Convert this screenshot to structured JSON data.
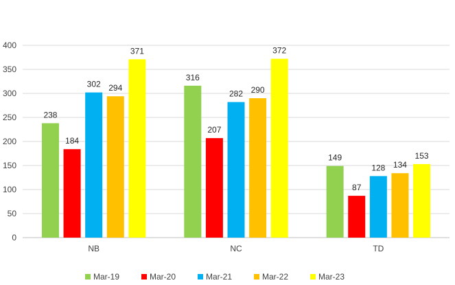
{
  "chart_data": {
    "type": "bar",
    "categories": [
      "NB",
      "NC",
      "TD"
    ],
    "series": [
      {
        "name": "Mar-19",
        "color": "#92D050",
        "values": [
          238,
          316,
          149
        ]
      },
      {
        "name": "Mar-20",
        "color": "#FF0000",
        "values": [
          184,
          207,
          87
        ]
      },
      {
        "name": "Mar-21",
        "color": "#00B0F0",
        "values": [
          302,
          282,
          128
        ]
      },
      {
        "name": "Mar-22",
        "color": "#FFC000",
        "values": [
          294,
          290,
          134
        ]
      },
      {
        "name": "Mar-23",
        "color": "#FFFF00",
        "values": [
          371,
          372,
          153
        ]
      }
    ],
    "yticks": [
      0,
      50,
      100,
      150,
      200,
      250,
      300,
      350,
      400
    ],
    "ylim": [
      0,
      400
    ],
    "grid": true,
    "legend": "bottom",
    "data_labels": true,
    "title": "",
    "xlabel": "",
    "ylabel": ""
  }
}
